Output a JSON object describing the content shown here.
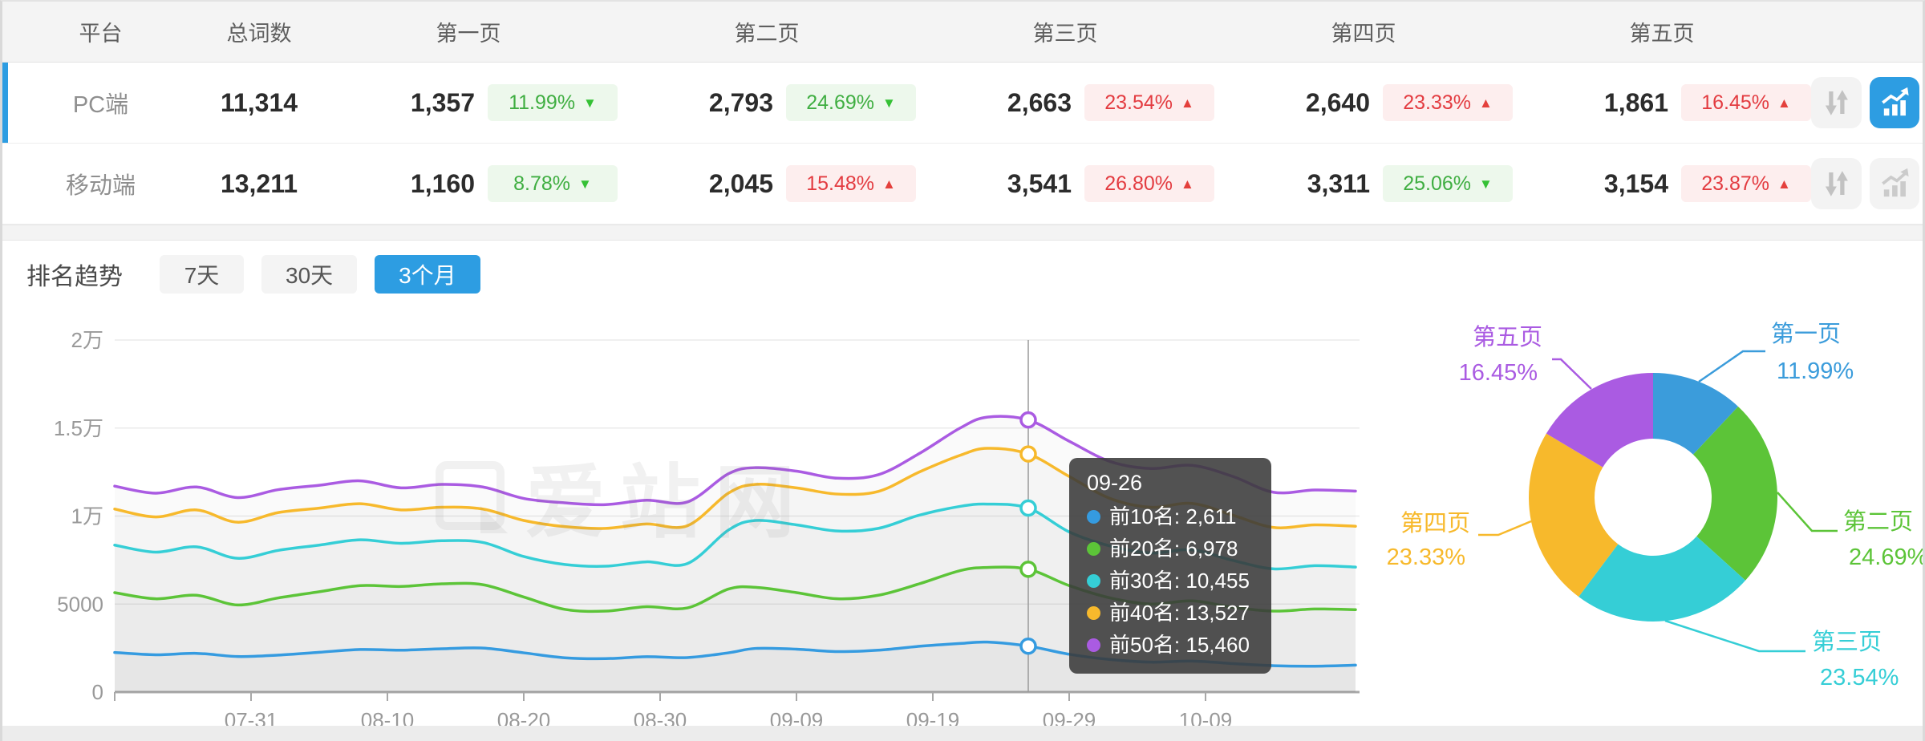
{
  "table": {
    "columns": [
      "平台",
      "总词数",
      "第一页",
      "第二页",
      "第三页",
      "第四页",
      "第五页"
    ],
    "rows": [
      {
        "platform": "PC端",
        "total": "11,314",
        "selected": true,
        "pages": [
          {
            "count": "1,357",
            "pct": "11.99%",
            "dir": "down",
            "tone": "green"
          },
          {
            "count": "2,793",
            "pct": "24.69%",
            "dir": "down",
            "tone": "green"
          },
          {
            "count": "2,663",
            "pct": "23.54%",
            "dir": "up",
            "tone": "red"
          },
          {
            "count": "2,640",
            "pct": "23.33%",
            "dir": "up",
            "tone": "red"
          },
          {
            "count": "1,861",
            "pct": "16.45%",
            "dir": "up",
            "tone": "red"
          }
        ]
      },
      {
        "platform": "移动端",
        "total": "13,211",
        "selected": false,
        "pages": [
          {
            "count": "1,160",
            "pct": "8.78%",
            "dir": "down",
            "tone": "green"
          },
          {
            "count": "2,045",
            "pct": "15.48%",
            "dir": "up",
            "tone": "red"
          },
          {
            "count": "3,541",
            "pct": "26.80%",
            "dir": "up",
            "tone": "red"
          },
          {
            "count": "3,311",
            "pct": "25.06%",
            "dir": "down",
            "tone": "green"
          },
          {
            "count": "3,154",
            "pct": "23.87%",
            "dir": "up",
            "tone": "red"
          }
        ]
      }
    ]
  },
  "trend": {
    "title": "排名趋势",
    "tabs": [
      {
        "label": "7天",
        "active": false
      },
      {
        "label": "30天",
        "active": false
      },
      {
        "label": "3个月",
        "active": true
      }
    ]
  },
  "tooltip": {
    "date": "09-26",
    "rows": [
      {
        "label": "前10名",
        "value": "2,611",
        "color": "#359be0"
      },
      {
        "label": "前20名",
        "value": "6,978",
        "color": "#5cc438"
      },
      {
        "label": "前30名",
        "value": "10,455",
        "color": "#35ced6"
      },
      {
        "label": "前40名",
        "value": "13,527",
        "color": "#f7b92c"
      },
      {
        "label": "前50名",
        "value": "15,460",
        "color": "#aa5be2"
      }
    ]
  },
  "watermark": {
    "text": "爱站网"
  },
  "chart_data": [
    {
      "type": "line",
      "title": "排名趋势 3个月",
      "ylim": [
        0,
        20000
      ],
      "y_ticks": [
        {
          "value": 0,
          "label": "0"
        },
        {
          "value": 5000,
          "label": "5000"
        },
        {
          "value": 10000,
          "label": "1万"
        },
        {
          "value": 15000,
          "label": "1.5万"
        },
        {
          "value": 20000,
          "label": "2万"
        }
      ],
      "x_ticks": [
        {
          "day": 10,
          "label": "07-31"
        },
        {
          "day": 20,
          "label": "08-10"
        },
        {
          "day": 30,
          "label": "08-20"
        },
        {
          "day": 40,
          "label": "08-30"
        },
        {
          "day": 50,
          "label": "09-09"
        },
        {
          "day": 60,
          "label": "09-19"
        },
        {
          "day": 70,
          "label": "09-29"
        },
        {
          "day": 80,
          "label": "10-09"
        }
      ],
      "marker_day": 67,
      "grid": true,
      "series": [
        {
          "name": "前10名",
          "color": "#359be0",
          "points": [
            [
              0,
              2250
            ],
            [
              3,
              2120
            ],
            [
              6,
              2200
            ],
            [
              9,
              2020
            ],
            [
              12,
              2100
            ],
            [
              15,
              2260
            ],
            [
              18,
              2420
            ],
            [
              21,
              2380
            ],
            [
              24,
              2460
            ],
            [
              27,
              2500
            ],
            [
              30,
              2230
            ],
            [
              33,
              1950
            ],
            [
              36,
              1900
            ],
            [
              39,
              2010
            ],
            [
              42,
              1960
            ],
            [
              45,
              2230
            ],
            [
              47,
              2480
            ],
            [
              50,
              2440
            ],
            [
              53,
              2300
            ],
            [
              56,
              2380
            ],
            [
              59,
              2600
            ],
            [
              62,
              2760
            ],
            [
              64,
              2840
            ],
            [
              67,
              2611
            ],
            [
              70,
              2150
            ],
            [
              73,
              1850
            ],
            [
              76,
              1700
            ],
            [
              79,
              1760
            ],
            [
              82,
              1620
            ],
            [
              85,
              1500
            ],
            [
              88,
              1470
            ],
            [
              91,
              1530
            ]
          ]
        },
        {
          "name": "前20名",
          "color": "#5cc438",
          "points": [
            [
              0,
              5650
            ],
            [
              3,
              5300
            ],
            [
              6,
              5500
            ],
            [
              9,
              4950
            ],
            [
              12,
              5350
            ],
            [
              15,
              5700
            ],
            [
              18,
              6050
            ],
            [
              21,
              6000
            ],
            [
              24,
              6150
            ],
            [
              27,
              6100
            ],
            [
              30,
              5400
            ],
            [
              33,
              4700
            ],
            [
              36,
              4600
            ],
            [
              39,
              4850
            ],
            [
              42,
              4780
            ],
            [
              45,
              5850
            ],
            [
              47,
              5950
            ],
            [
              50,
              5650
            ],
            [
              53,
              5300
            ],
            [
              56,
              5500
            ],
            [
              59,
              6150
            ],
            [
              62,
              6900
            ],
            [
              64,
              7080
            ],
            [
              67,
              6978
            ],
            [
              70,
              6050
            ],
            [
              73,
              5350
            ],
            [
              76,
              5000
            ],
            [
              79,
              5180
            ],
            [
              82,
              4820
            ],
            [
              85,
              4600
            ],
            [
              88,
              4720
            ],
            [
              91,
              4680
            ]
          ]
        },
        {
          "name": "前30名",
          "color": "#35ced6",
          "points": [
            [
              0,
              8350
            ],
            [
              3,
              7950
            ],
            [
              6,
              8250
            ],
            [
              9,
              7600
            ],
            [
              12,
              8050
            ],
            [
              15,
              8350
            ],
            [
              18,
              8650
            ],
            [
              21,
              8450
            ],
            [
              24,
              8600
            ],
            [
              27,
              8500
            ],
            [
              30,
              7700
            ],
            [
              33,
              7250
            ],
            [
              36,
              7150
            ],
            [
              39,
              7400
            ],
            [
              42,
              7300
            ],
            [
              45,
              9200
            ],
            [
              47,
              9750
            ],
            [
              50,
              9500
            ],
            [
              53,
              9150
            ],
            [
              56,
              9300
            ],
            [
              59,
              10050
            ],
            [
              62,
              10550
            ],
            [
              64,
              10680
            ],
            [
              67,
              10455
            ],
            [
              70,
              9100
            ],
            [
              73,
              8300
            ],
            [
              76,
              7900
            ],
            [
              79,
              8080
            ],
            [
              82,
              7480
            ],
            [
              85,
              7000
            ],
            [
              88,
              7180
            ],
            [
              91,
              7100
            ]
          ]
        },
        {
          "name": "前40名",
          "color": "#f7b92c",
          "points": [
            [
              0,
              10400
            ],
            [
              3,
              9950
            ],
            [
              6,
              10350
            ],
            [
              9,
              9650
            ],
            [
              12,
              10200
            ],
            [
              15,
              10450
            ],
            [
              18,
              10700
            ],
            [
              21,
              10350
            ],
            [
              24,
              10500
            ],
            [
              27,
              10400
            ],
            [
              30,
              9750
            ],
            [
              33,
              9400
            ],
            [
              36,
              9300
            ],
            [
              39,
              9550
            ],
            [
              42,
              9450
            ],
            [
              45,
              11300
            ],
            [
              47,
              11800
            ],
            [
              50,
              11600
            ],
            [
              53,
              11250
            ],
            [
              56,
              11400
            ],
            [
              59,
              12500
            ],
            [
              62,
              13450
            ],
            [
              64,
              13850
            ],
            [
              67,
              13527
            ],
            [
              70,
              12250
            ],
            [
              73,
              11000
            ],
            [
              76,
              10500
            ],
            [
              79,
              10720
            ],
            [
              82,
              10050
            ],
            [
              85,
              9350
            ],
            [
              88,
              9500
            ],
            [
              91,
              9420
            ]
          ]
        },
        {
          "name": "前50名",
          "color": "#aa5be2",
          "points": [
            [
              0,
              11700
            ],
            [
              3,
              11300
            ],
            [
              6,
              11650
            ],
            [
              9,
              11050
            ],
            [
              12,
              11500
            ],
            [
              15,
              11750
            ],
            [
              18,
              12000
            ],
            [
              21,
              11600
            ],
            [
              24,
              11800
            ],
            [
              27,
              11650
            ],
            [
              30,
              11000
            ],
            [
              33,
              10750
            ],
            [
              36,
              10650
            ],
            [
              39,
              10900
            ],
            [
              42,
              10800
            ],
            [
              45,
              12400
            ],
            [
              47,
              12750
            ],
            [
              50,
              12550
            ],
            [
              53,
              12150
            ],
            [
              56,
              12350
            ],
            [
              59,
              13550
            ],
            [
              62,
              15000
            ],
            [
              64,
              15620
            ],
            [
              67,
              15460
            ],
            [
              70,
              14250
            ],
            [
              73,
              13100
            ],
            [
              76,
              12700
            ],
            [
              79,
              12880
            ],
            [
              82,
              12250
            ],
            [
              85,
              11350
            ],
            [
              88,
              11480
            ],
            [
              91,
              11420
            ]
          ]
        }
      ]
    },
    {
      "type": "pie",
      "inner_radius_ratio": 0.47,
      "slices": [
        {
          "label": "第一页",
          "pct_label": "11.99%",
          "value": 11.99,
          "color": "#3b9cdb"
        },
        {
          "label": "第二页",
          "pct_label": "24.69%",
          "value": 24.69,
          "color": "#5cc438"
        },
        {
          "label": "第三页",
          "pct_label": "23.54%",
          "value": 23.54,
          "color": "#35ced6"
        },
        {
          "label": "第四页",
          "pct_label": "23.33%",
          "value": 23.33,
          "color": "#f7b92c"
        },
        {
          "label": "第五页",
          "pct_label": "16.45%",
          "value": 16.45,
          "color": "#aa5be2"
        }
      ]
    }
  ]
}
